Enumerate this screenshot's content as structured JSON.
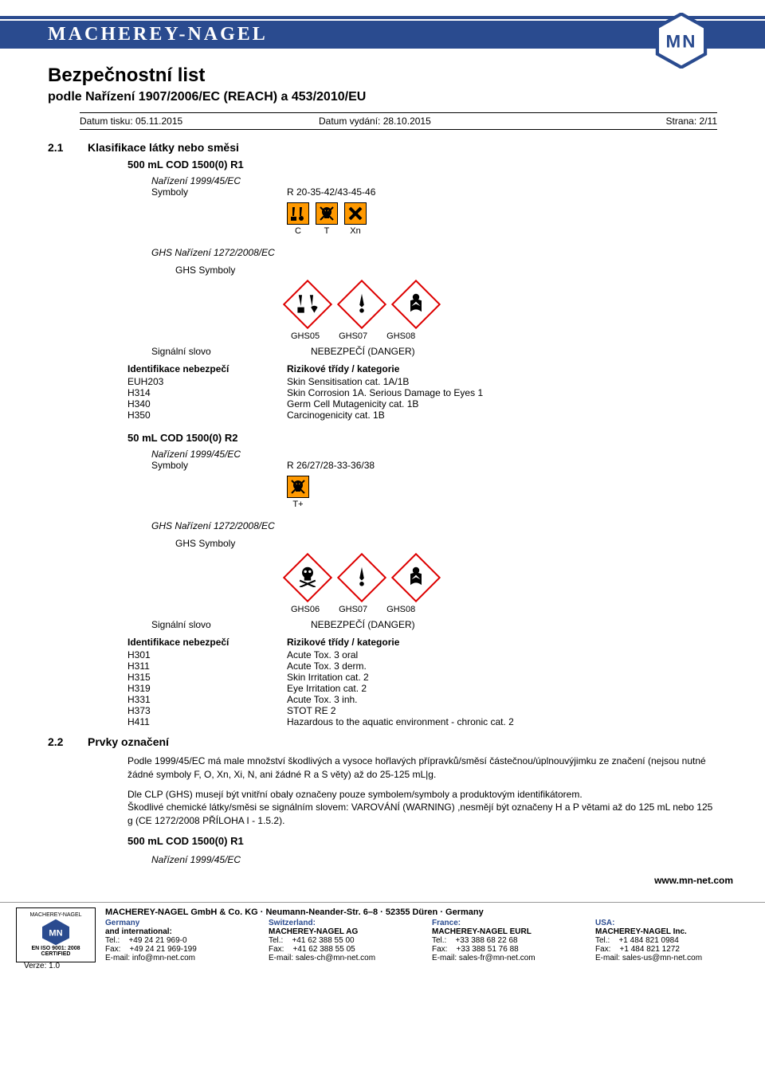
{
  "header": {
    "company_name": "MACHEREY-NAGEL",
    "logo_text": "MN"
  },
  "document": {
    "title": "Bezpečnostní list",
    "subtitle": "podle Nařízení 1907/2006/EC (REACH) a 453/2010/EU",
    "print_date_label": "Datum tisku: 05.11.2015",
    "issue_date_label": "Datum vydání: 28.10.2015",
    "page_label": "Strana: 2/11"
  },
  "section_2_1": {
    "num": "2.1",
    "title": "Klasifikace látky nebo směsi",
    "product1": {
      "title": "500 mL COD 1500(0) R1",
      "regulation": "Nařízení 1999/45/EC",
      "symbols_label": "Symboly",
      "r_phrase": "R 20-35-42/43-45-46",
      "old_symbols": [
        {
          "code": "C",
          "icon": "corrosive",
          "color": "#ff9900"
        },
        {
          "code": "T",
          "icon": "skull",
          "color": "#ff9900"
        },
        {
          "code": "Xn",
          "icon": "x",
          "color": "#ff9900"
        }
      ],
      "ghs_regulation": "GHS Nařízení 1272/2008/EC",
      "ghs_symbols_label": "GHS Symboly",
      "ghs_pictograms": [
        "GHS05",
        "GHS07",
        "GHS08"
      ],
      "signal_word_label": "Signální slovo",
      "signal_word": "NEBEZPEČÍ (DANGER)",
      "hazards_header_left": "Identifikace nebezpečí",
      "hazards_header_right": "Rizikové třídy / kategorie",
      "hazards": [
        {
          "code": "EUH203",
          "desc": "Skin Sensitisation cat. 1A/1B"
        },
        {
          "code": "H314",
          "desc": "Skin Corrosion 1A. Serious Damage to Eyes 1"
        },
        {
          "code": "H340",
          "desc": "Germ Cell Mutagenicity cat. 1B"
        },
        {
          "code": "H350",
          "desc": "Carcinogenicity cat. 1B"
        }
      ]
    },
    "product2": {
      "title": "50 mL COD 1500(0) R2",
      "regulation": "Nařízení 1999/45/EC",
      "symbols_label": "Symboly",
      "r_phrase": "R 26/27/28-33-36/38",
      "old_symbols": [
        {
          "code": "T+",
          "icon": "skull",
          "color": "#ff9900"
        }
      ],
      "ghs_regulation": "GHS Nařízení 1272/2008/EC",
      "ghs_symbols_label": "GHS Symboly",
      "ghs_pictograms": [
        "GHS06",
        "GHS07",
        "GHS08"
      ],
      "signal_word_label": "Signální slovo",
      "signal_word": "NEBEZPEČÍ (DANGER)",
      "hazards_header_left": "Identifikace nebezpečí",
      "hazards_header_right": "Rizikové třídy / kategorie",
      "hazards": [
        {
          "code": "H301",
          "desc": "Acute Tox. 3 oral"
        },
        {
          "code": "H311",
          "desc": "Acute Tox. 3 derm."
        },
        {
          "code": "H315",
          "desc": "Skin Irritation cat. 2"
        },
        {
          "code": "H319",
          "desc": "Eye Irritation cat. 2"
        },
        {
          "code": "H331",
          "desc": "Acute Tox. 3 inh."
        },
        {
          "code": "H373",
          "desc": "STOT RE 2"
        },
        {
          "code": "H411",
          "desc": "Hazardous to the aquatic environment - chronic cat. 2"
        }
      ]
    }
  },
  "section_2_2": {
    "num": "2.2",
    "title": "Prvky označení",
    "para1": "Podle 1999/45/EC má male množství škodlivých a vysoce hořlavých přípravků/směsí částečnou/úplnouvýjimku ze značení (nejsou nutné žádné symboly F, O, Xn, Xi, N, ani žádné R a S věty) až do 25-125 mL|g.",
    "para2a": "Dle CLP (GHS) musejí být vnitřní obaly označeny pouze symbolem/symboly a produktovým identifikátorem.",
    "para2b": "Škodlivé chemické látky/směsi se signálním slovem: VAROVÁNÍ (WARNING) ,nesmějí být označeny H a P větami až do 125 mL nebo 125 g (CE 1272/2008 PŘÍLOHA I - 1.5.2).",
    "product_title": "500 mL COD 1500(0) R1",
    "regulation": "Nařízení 1999/45/EC"
  },
  "footer": {
    "website": "www.mn-net.com",
    "first_line": "MACHEREY-NAGEL GmbH & Co. KG · Neumann-Neander-Str. 6–8 · 52355 Düren · Germany",
    "badge": {
      "l1": "MACHEREY-NAGEL",
      "logo": "MN",
      "l2": "EN ISO 9001: 2008",
      "l3": "CERTIFIED"
    },
    "cols": [
      {
        "country": "Germany",
        "extra": "and international:",
        "company": "",
        "tel": "Tel.:    +49 24 21 969-0",
        "fax": "Fax:    +49 24 21 969-199",
        "email": "E-mail: info@mn-net.com"
      },
      {
        "country": "Switzerland:",
        "extra": "",
        "company": "MACHEREY-NAGEL AG",
        "tel": "Tel.:    +41 62 388 55 00",
        "fax": "Fax:    +41 62 388 55 05",
        "email": "E-mail: sales-ch@mn-net.com"
      },
      {
        "country": "France:",
        "extra": "",
        "company": "MACHEREY-NAGEL EURL",
        "tel": "Tel.:    +33 388 68 22 68",
        "fax": "Fax:    +33 388 51 76 88",
        "email": "E-mail: sales-fr@mn-net.com"
      },
      {
        "country": "USA:",
        "extra": "",
        "company": "MACHEREY-NAGEL Inc.",
        "tel": "Tel.:    +1 484 821 0984",
        "fax": "Fax:    +1 484 821 1272",
        "email": "E-mail: sales-us@mn-net.com"
      }
    ]
  },
  "version": "Verze: 1.0"
}
